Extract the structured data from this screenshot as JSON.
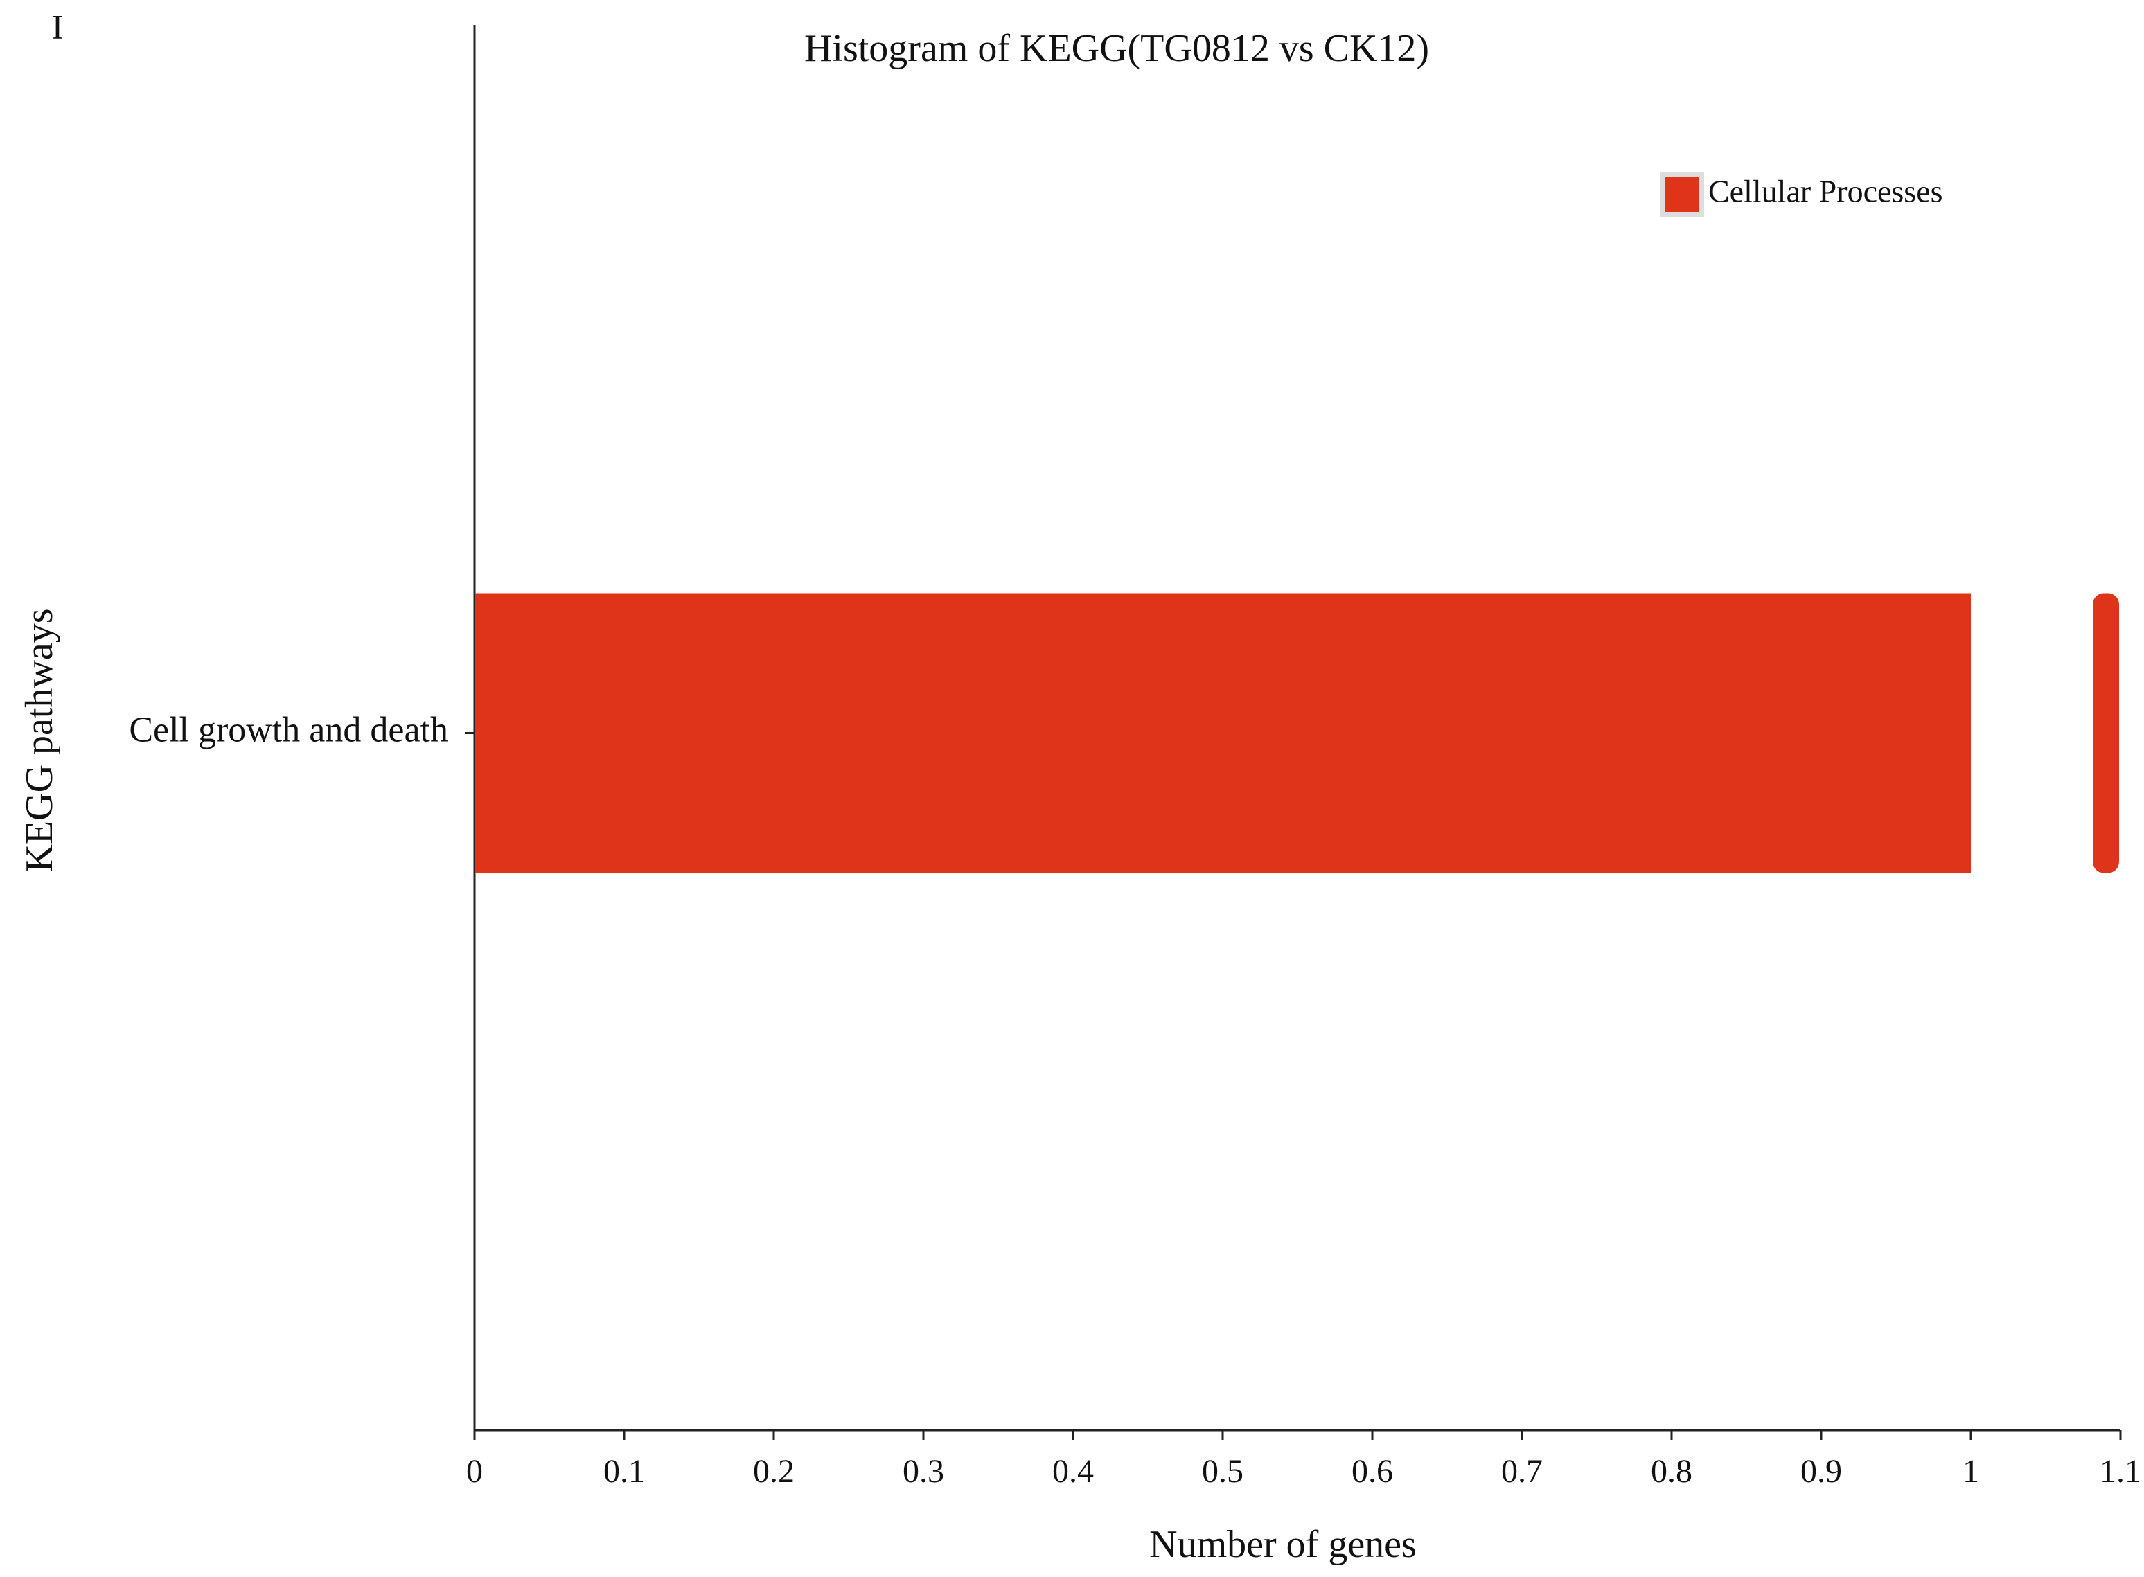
{
  "chart_data": {
    "type": "bar",
    "orientation": "horizontal",
    "panel_label": "I",
    "title": "Histogram of KEGG(TG0812 vs CK12)",
    "x_label": "Number of genes",
    "y_label": "KEGG pathways",
    "categories": [
      "Cell growth and death"
    ],
    "series": [
      {
        "name": "Cellular Processes",
        "color": "#e0341a",
        "values": [
          1
        ]
      }
    ],
    "xlim": [
      0,
      1.1
    ],
    "xticks": [
      0,
      0.1,
      0.2,
      0.3,
      0.4,
      0.5,
      0.6,
      0.7,
      0.8,
      0.9,
      1,
      1.1
    ],
    "grid": false,
    "legend": "top-right"
  }
}
